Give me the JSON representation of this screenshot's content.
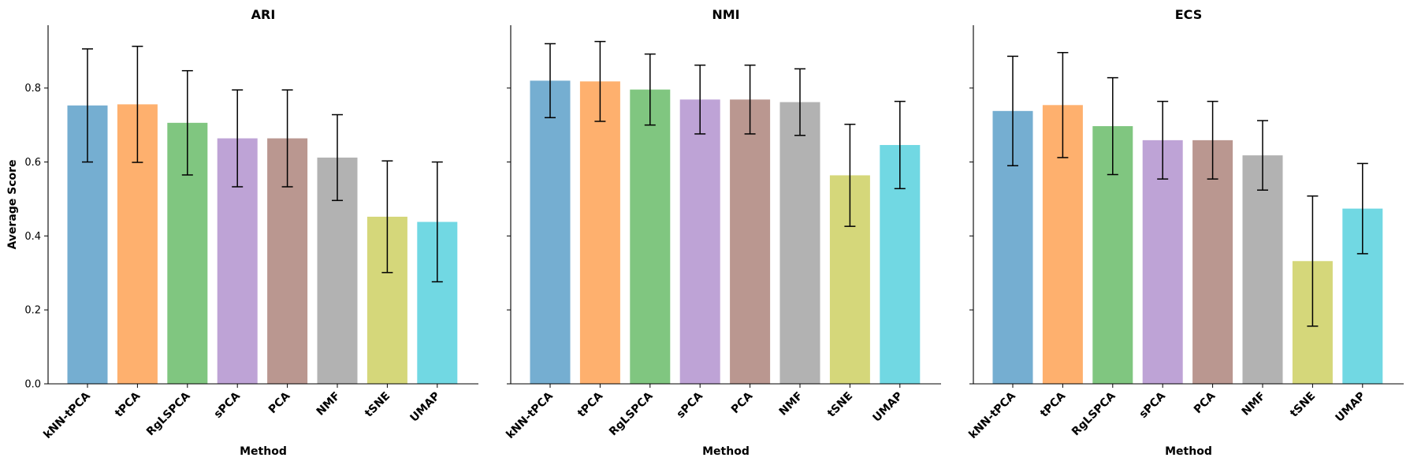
{
  "chart_data": [
    {
      "type": "bar",
      "title": "ARI",
      "xlabel": "Method",
      "ylabel": "Average Score",
      "ylim": [
        0,
        0.97
      ],
      "yticks": [
        "0.0",
        "0.2",
        "0.4",
        "0.6",
        "0.8"
      ],
      "categories": [
        "kNN-tPCA",
        "tPCA",
        "RgLSPCA",
        "sPCA",
        "PCA",
        "NMF",
        "tSNE",
        "UMAP"
      ],
      "values": [
        0.753,
        0.756,
        0.706,
        0.664,
        0.664,
        0.612,
        0.452,
        0.438
      ],
      "errors": [
        0.153,
        0.157,
        0.141,
        0.131,
        0.131,
        0.116,
        0.151,
        0.162
      ],
      "grid": false,
      "legend": "none"
    },
    {
      "type": "bar",
      "title": "NMI",
      "xlabel": "Method",
      "ylabel": "",
      "ylim": [
        0,
        0.97
      ],
      "yticks": [
        "",
        "",
        "",
        "",
        ""
      ],
      "categories": [
        "kNN-tPCA",
        "tPCA",
        "RgLSPCA",
        "sPCA",
        "PCA",
        "NMF",
        "tSNE",
        "UMAP"
      ],
      "values": [
        0.82,
        0.818,
        0.796,
        0.769,
        0.769,
        0.762,
        0.564,
        0.646
      ],
      "errors": [
        0.1,
        0.108,
        0.096,
        0.093,
        0.093,
        0.09,
        0.138,
        0.118
      ],
      "grid": false,
      "legend": "none"
    },
    {
      "type": "bar",
      "title": "ECS",
      "xlabel": "Method",
      "ylabel": "",
      "ylim": [
        0,
        0.97
      ],
      "yticks": [
        "",
        "",
        "",
        "",
        ""
      ],
      "categories": [
        "kNN-tPCA",
        "tPCA",
        "RgLSPCA",
        "sPCA",
        "PCA",
        "NMF",
        "tSNE",
        "UMAP"
      ],
      "values": [
        0.738,
        0.754,
        0.697,
        0.659,
        0.659,
        0.618,
        0.332,
        0.474
      ],
      "errors": [
        0.148,
        0.142,
        0.131,
        0.105,
        0.105,
        0.094,
        0.176,
        0.122
      ],
      "grid": false,
      "legend": "none"
    }
  ],
  "colors": [
    "#75aed1",
    "#feb06e",
    "#80c680",
    "#bea3d6",
    "#ba9790",
    "#b2b2b2",
    "#d5d77a",
    "#71d8e3"
  ]
}
